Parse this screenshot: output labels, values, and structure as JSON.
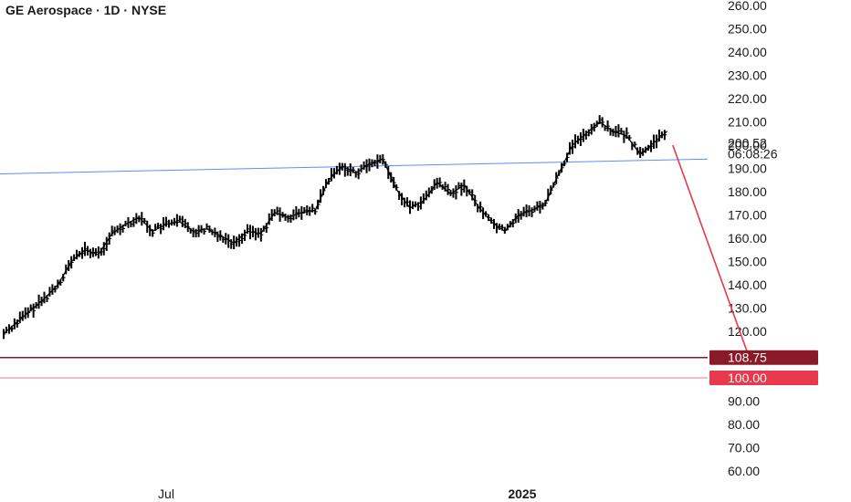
{
  "chart_data": {
    "type": "line",
    "title": "GE Aerospace · 1D · NYSE",
    "xlabel": "",
    "ylabel": "",
    "ylim": [
      57,
      262
    ],
    "y_ticks": [
      260,
      250,
      240,
      230,
      220,
      210,
      200,
      190,
      180,
      170,
      160,
      150,
      140,
      130,
      120,
      110,
      100,
      90,
      80,
      70,
      60
    ],
    "x_ticks": [
      {
        "label": "Jul",
        "x": "2024-07-01"
      },
      {
        "label": "2025",
        "x": "2025-01-01"
      },
      {
        "label": "Jul",
        "x": "2025-07-01"
      }
    ],
    "grid": false,
    "last_price": {
      "label": "200.52",
      "countdown": "06:08:26"
    },
    "series": [
      {
        "x": [
          "2024-04-08",
          "2024-04-15",
          "2024-04-22",
          "2024-04-29",
          "2024-05-06",
          "2024-05-13",
          "2024-05-20",
          "2024-05-27",
          "2024-06-03",
          "2024-06-10",
          "2024-06-17",
          "2024-06-24",
          "2024-07-01",
          "2024-07-08",
          "2024-07-15",
          "2024-07-22",
          "2024-07-29",
          "2024-08-05",
          "2024-08-12",
          "2024-08-19",
          "2024-08-26",
          "2024-09-02",
          "2024-09-09",
          "2024-09-16",
          "2024-09-23",
          "2024-09-30",
          "2024-10-07",
          "2024-10-14",
          "2024-10-21",
          "2024-10-28",
          "2024-11-04",
          "2024-11-11",
          "2024-11-18",
          "2024-11-25",
          "2024-12-02",
          "2024-12-09",
          "2024-12-16",
          "2024-12-23",
          "2024-12-30",
          "2025-01-06",
          "2025-01-13",
          "2025-01-20",
          "2025-01-27",
          "2025-02-03",
          "2025-02-10",
          "2025-02-17",
          "2025-02-24",
          "2025-03-03",
          "2025-03-10",
          "2025-03-17"
        ],
        "values": [
          119,
          124,
          129,
          134,
          140,
          150,
          155,
          153,
          162,
          166,
          169,
          163,
          166,
          167,
          163,
          164,
          161,
          158,
          163,
          162,
          171,
          169,
          171,
          172,
          185,
          191,
          188,
          192,
          194,
          181,
          173,
          176,
          184,
          179,
          183,
          174,
          167,
          163,
          170,
          172,
          175,
          188,
          200,
          205,
          210,
          206,
          204,
          196,
          201,
          206
        ]
      }
    ],
    "annotations": {
      "trendline": {
        "start": {
          "x": "2024-04-01",
          "y": 187.5
        },
        "end": {
          "x": "2025-09-01",
          "y": 194
        },
        "color": "#5b8ff9"
      },
      "projection_arrow": {
        "start": {
          "x": "2025-03-17",
          "y": 200
        },
        "end": {
          "x": "2025-04-28",
          "y": 109.5
        },
        "color": "#e8394d"
      },
      "levels": [
        {
          "value": 108.75,
          "label": "108.75",
          "line_color": "#7a1c28",
          "badge_color": "#8b1a28"
        },
        {
          "value": 100.0,
          "label": "100.00",
          "line_color": "#f07a85",
          "badge_color": "#e8394d"
        }
      ]
    }
  }
}
